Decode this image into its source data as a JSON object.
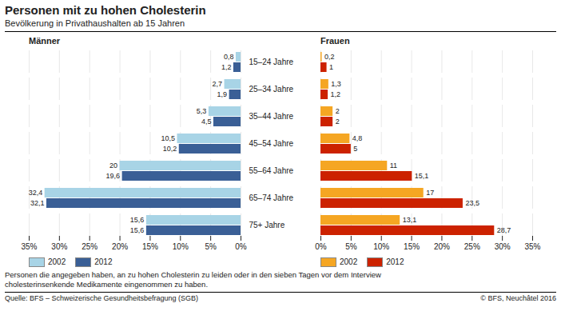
{
  "title": "Personen mit zu hohen Cholesterin",
  "subtitle": "Bevölkerung in Privathaushalten ab 15 Jahren",
  "annotations": [
    "Personen die angegeben haben, an zu hohen Cholesterin zu leiden oder in den sieben Tagen vor dem Interview",
    "cholesterinsenkende Medikamente eingenommen zu haben.",
    "Quelle: BFS – Schweizerische Gesundheitsbefragung (SGB)",
    "© BFS, Neuchâtel 2016"
  ],
  "chart_data": [
    {
      "type": "bar",
      "title": "Männer",
      "orientation": "horizontal",
      "categories": [
        "15–24 Jahre",
        "25–34 Jahre",
        "35–44 Jahre",
        "45–54 Jahre",
        "55–64 Jahre",
        "65–74 Jahre",
        "75+ Jahre"
      ],
      "series": [
        {
          "name": "2002",
          "color": "#a8d4e6",
          "values": [
            0.8,
            2.7,
            5.3,
            10.5,
            20.0,
            32.4,
            15.6
          ],
          "value_labels": [
            "0,8",
            "2,7",
            "5,3",
            "10,5",
            "20",
            "32,4",
            "15,6"
          ]
        },
        {
          "name": "2012",
          "color": "#3a5f96",
          "values": [
            1.2,
            1.9,
            4.5,
            10.2,
            19.6,
            32.1,
            15.6
          ],
          "value_labels": [
            "1,2",
            "1,9",
            "4,5",
            "10,2",
            "19,6",
            "32,1",
            "15,6"
          ]
        }
      ],
      "xlim": [
        35,
        0
      ],
      "xticks": [
        {
          "value": 0,
          "label": "0%"
        },
        {
          "value": 5,
          "label": "5%"
        },
        {
          "value": 10,
          "label": "10%"
        },
        {
          "value": 15,
          "label": "15%"
        },
        {
          "value": 20,
          "label": "20%"
        },
        {
          "value": 25,
          "label": "25%"
        },
        {
          "value": 30,
          "label": "30%"
        },
        {
          "value": 35,
          "label": "35%"
        }
      ],
      "grid": true,
      "data_labels": true,
      "legend": "bottom"
    },
    {
      "type": "bar",
      "title": "Frauen",
      "orientation": "horizontal",
      "categories": [
        "15–24 Jahre",
        "25–34 Jahre",
        "35–44 Jahre",
        "45–54 Jahre",
        "55–64 Jahre",
        "65–74 Jahre",
        "75+ Jahre"
      ],
      "series": [
        {
          "name": "2002",
          "color": "#f5a623",
          "values": [
            0.2,
            1.3,
            2.0,
            4.8,
            11.0,
            17.0,
            13.1
          ],
          "value_labels": [
            "0,2",
            "1,3",
            "2",
            "4,8",
            "11",
            "17",
            "13,1"
          ]
        },
        {
          "name": "2012",
          "color": "#cc2200",
          "values": [
            1.0,
            1.2,
            2.0,
            5.0,
            15.1,
            23.5,
            28.7
          ],
          "value_labels": [
            "1",
            "1,2",
            "2",
            "5",
            "15,1",
            "23,5",
            "28,7"
          ]
        }
      ],
      "xlim": [
        0,
        35
      ],
      "xticks": [
        {
          "value": 0,
          "label": "0%"
        },
        {
          "value": 5,
          "label": "5%"
        },
        {
          "value": 10,
          "label": "10%"
        },
        {
          "value": 15,
          "label": "15%"
        },
        {
          "value": 20,
          "label": "20%"
        },
        {
          "value": 25,
          "label": "25%"
        },
        {
          "value": 30,
          "label": "30%"
        },
        {
          "value": 35,
          "label": "35%"
        }
      ],
      "grid": true,
      "data_labels": true,
      "legend": "bottom",
      "tick_labels": "x"
    }
  ]
}
